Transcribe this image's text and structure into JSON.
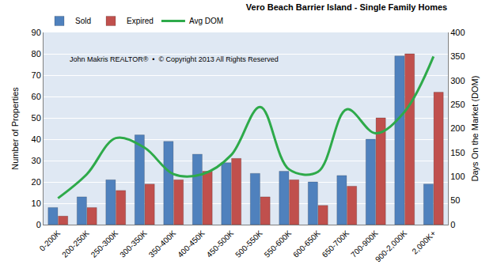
{
  "chart_data": {
    "type": "bar",
    "title": "Vero Beach Barrier Island - Single Family Homes",
    "annotations": [
      "John Makris REALTOR®  •  © Copyright 2013 All Rights Reserved"
    ],
    "x_label": null,
    "y_label": "Number of Properties",
    "y2_label": "Days On the Market (DOM)",
    "categories": [
      "0-200K",
      "200-250K",
      "250-300K",
      "300-350K",
      "350-400K",
      "400-450K",
      "450-500K",
      "500-550K",
      "550-600K",
      "600-650K",
      "650-700K",
      "700-900K",
      "900-2,000K",
      "2,000K+"
    ],
    "series": [
      {
        "name": "Sold",
        "type": "bar",
        "color": "#4f81bd",
        "values": [
          8,
          13,
          21,
          42,
          39,
          33,
          29,
          24,
          25,
          20,
          23,
          40,
          79,
          19
        ]
      },
      {
        "name": "Expired",
        "type": "bar",
        "color": "#c0504d",
        "values": [
          4,
          8,
          16,
          19,
          21,
          25,
          31,
          13,
          21,
          9,
          18,
          50,
          80,
          62
        ]
      },
      {
        "name": "Avg DOM",
        "type": "line",
        "axis": "y2",
        "color": "#2eaa4a",
        "line_style": "solid",
        "values": [
          55,
          105,
          180,
          160,
          105,
          105,
          145,
          245,
          115,
          110,
          240,
          190,
          235,
          350
        ]
      }
    ],
    "ylim": [
      0,
      90
    ],
    "yticks": [
      0,
      10,
      20,
      30,
      40,
      50,
      60,
      70,
      80,
      90
    ],
    "y2lim": [
      0,
      400
    ],
    "y2ticks": [
      0,
      50,
      100,
      150,
      200,
      250,
      300,
      350,
      400
    ],
    "grid": true,
    "legend": "top-left"
  }
}
